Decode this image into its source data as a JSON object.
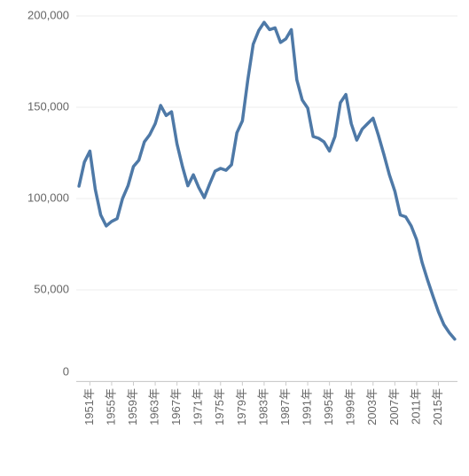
{
  "chart_data": {
    "type": "line",
    "categories": [
      null,
      null,
      "1951年",
      null,
      null,
      null,
      "1955年",
      null,
      null,
      null,
      "1959年",
      null,
      null,
      null,
      "1963年",
      null,
      null,
      null,
      "1967年",
      null,
      null,
      null,
      "1971年",
      null,
      null,
      null,
      "1975年",
      null,
      null,
      null,
      "1979年",
      null,
      null,
      null,
      "1983年",
      null,
      null,
      null,
      "1987年",
      null,
      null,
      null,
      "1991年",
      null,
      null,
      null,
      "1995年",
      null,
      null,
      null,
      "1999年",
      null,
      null,
      null,
      "2003年",
      null,
      null,
      null,
      "2007年",
      null,
      null,
      null,
      "2011年",
      null,
      null,
      null,
      "2015年",
      null,
      null,
      null
    ],
    "series": [
      {
        "color": "#4e79a7",
        "values": [
          106800,
          120000,
          126000,
          105000,
          91000,
          85000,
          87500,
          89000,
          100000,
          107000,
          117500,
          121000,
          131000,
          135000,
          141000,
          151000,
          145500,
          147500,
          130000,
          117500,
          107000,
          113000,
          106000,
          100500,
          108000,
          115000,
          116500,
          115500,
          118500,
          136000,
          142500,
          165000,
          184500,
          192000,
          196500,
          192500,
          193500,
          185500,
          187500,
          192500,
          165000,
          154000,
          149500,
          134000,
          133000,
          131000,
          126000,
          134000,
          152500,
          157000,
          141000,
          132000,
          138000,
          141000,
          144000,
          134500,
          124000,
          113000,
          104000,
          91000,
          90000,
          85000,
          77500,
          65000,
          55500,
          46500,
          38000,
          31000,
          26500,
          23000
        ]
      }
    ],
    "ylim": [
      0,
      200000
    ],
    "yticks": [
      0,
      {
        "value": 50000,
        "label": "50,000"
      },
      {
        "value": 100000,
        "label": "100,000"
      },
      {
        "value": 150000,
        "label": "150,000"
      },
      {
        "value": 200000,
        "label": "200,000"
      }
    ],
    "grid": true
  }
}
